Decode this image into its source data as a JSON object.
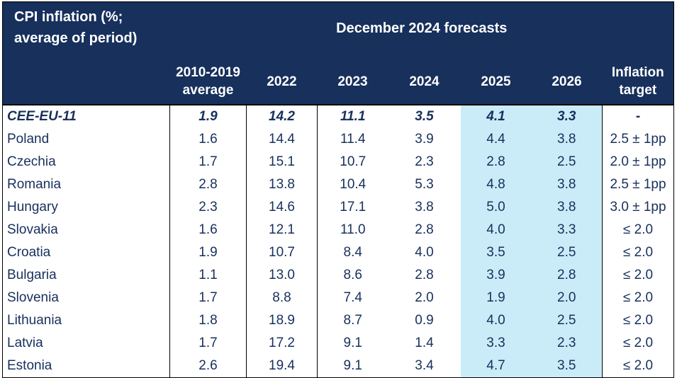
{
  "chart_data": {
    "type": "table",
    "title": "CPI inflation (%; average of period)",
    "title_lines": [
      "CPI inflation (%;",
      "average of period)"
    ],
    "forecast_header": "December 2024 forecasts",
    "columns": [
      [
        "2010-2019",
        "average"
      ],
      [
        "2022"
      ],
      [
        "2023"
      ],
      [
        "2024"
      ],
      [
        "2025"
      ],
      [
        "2026"
      ],
      [
        "Inflation",
        "target"
      ]
    ],
    "rows": [
      {
        "country": "CEE-EU-11",
        "values": [
          "1.9",
          "14.2",
          "11.1",
          "3.5",
          "4.1",
          "3.3",
          "-"
        ],
        "aggregate": true
      },
      {
        "country": "Poland",
        "values": [
          "1.6",
          "14.4",
          "11.4",
          "3.9",
          "4.4",
          "3.8",
          "2.5 ± 1pp"
        ]
      },
      {
        "country": "Czechia",
        "values": [
          "1.7",
          "15.1",
          "10.7",
          "2.3",
          "2.8",
          "2.5",
          "2.0 ± 1pp"
        ]
      },
      {
        "country": "Romania",
        "values": [
          "2.8",
          "13.8",
          "10.4",
          "5.3",
          "4.8",
          "3.8",
          "2.5 ± 1pp"
        ]
      },
      {
        "country": "Hungary",
        "values": [
          "2.3",
          "14.6",
          "17.1",
          "3.8",
          "5.0",
          "3.8",
          "3.0 ± 1pp"
        ]
      },
      {
        "country": "Slovakia",
        "values": [
          "1.6",
          "12.1",
          "11.0",
          "2.8",
          "4.0",
          "3.3",
          "≤ 2.0"
        ]
      },
      {
        "country": "Croatia",
        "values": [
          "1.9",
          "10.7",
          "8.4",
          "4.0",
          "3.5",
          "2.5",
          "≤ 2.0"
        ]
      },
      {
        "country": "Bulgaria",
        "values": [
          "1.1",
          "13.0",
          "8.6",
          "2.8",
          "3.9",
          "2.8",
          "≤ 2.0"
        ]
      },
      {
        "country": "Slovenia",
        "values": [
          "1.7",
          "8.8",
          "7.4",
          "2.0",
          "1.9",
          "2.0",
          "≤ 2.0"
        ]
      },
      {
        "country": "Lithuania",
        "values": [
          "1.8",
          "18.9",
          "8.7",
          "0.9",
          "4.0",
          "2.5",
          "≤ 2.0"
        ]
      },
      {
        "country": "Latvia",
        "values": [
          "1.7",
          "17.2",
          "9.1",
          "1.4",
          "3.3",
          "2.3",
          "≤ 2.0"
        ]
      },
      {
        "country": "Estonia",
        "values": [
          "2.6",
          "19.4",
          "9.1",
          "3.4",
          "4.7",
          "3.5",
          "≤ 2.0"
        ]
      }
    ],
    "colors": {
      "header_bg": "#17305c",
      "header_text": "#ffffff",
      "forecast_highlight": "#c9ecf8",
      "body_text": "#17305c"
    }
  }
}
